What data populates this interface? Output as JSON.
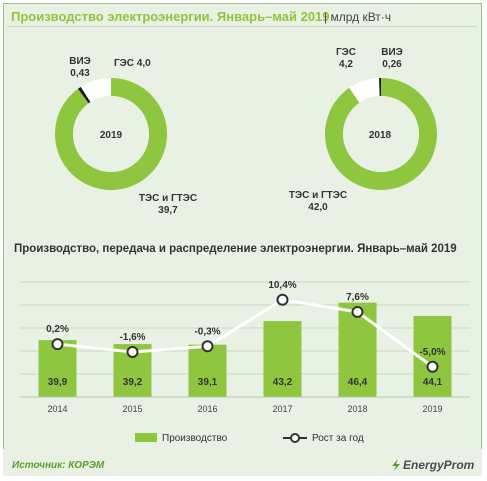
{
  "header": {
    "title": "Производство электроэнергии. Январь–май 2019",
    "unit": "| млрд кВт·ч"
  },
  "colors": {
    "tes": "#8ec63f",
    "ges": "#ffffff",
    "vie": "#1a1a1a",
    "background": "#e8f1e3",
    "line": "#ffffff",
    "title_green": "#8ec63f"
  },
  "donuts": [
    {
      "center_label": "2019",
      "labels": {
        "vie": "ВИЭ\n0,43",
        "ges": "ГЭС 4,0",
        "tes": "ТЭС и ГТЭС\n39,7"
      }
    },
    {
      "center_label": "2018",
      "labels": {
        "ges": "ГЭС\n4,2",
        "vie": "ВИЭ\n0,26",
        "tes": "ТЭС и ГТЭС\n42,0"
      }
    }
  ],
  "chart2": {
    "title": "Производство,  передача и распределение электроэнергии. Январь–май 2019"
  },
  "chart_data": [
    {
      "type": "pie",
      "center": "2019",
      "slices": [
        {
          "name": "ТЭС и ГТЭС",
          "value": 39.7
        },
        {
          "name": "ГЭС",
          "value": 4.0
        },
        {
          "name": "ВИЭ",
          "value": 0.43
        }
      ]
    },
    {
      "type": "pie",
      "center": "2018",
      "slices": [
        {
          "name": "ТЭС и ГТЭС",
          "value": 42.0
        },
        {
          "name": "ГЭС",
          "value": 4.2
        },
        {
          "name": "ВИЭ",
          "value": 0.26
        }
      ]
    },
    {
      "type": "bar",
      "title": "Производство,  передача и распределение электроэнергии. Январь–май 2019",
      "categories": [
        "2014",
        "2015",
        "2016",
        "2017",
        "2018",
        "2019"
      ],
      "series": [
        {
          "name": "Производство",
          "kind": "bar",
          "values": [
            39.9,
            39.2,
            39.1,
            43.2,
            46.4,
            44.1
          ],
          "labels": [
            "39,9",
            "39,2",
            "39,1",
            "43,2",
            "46,4",
            "44,1"
          ]
        },
        {
          "name": "Рост за год",
          "kind": "line",
          "values": [
            0.2,
            -1.6,
            -0.3,
            10.4,
            7.6,
            -5.0
          ],
          "labels": [
            "0,2%",
            "-1,6%",
            "-0,3%",
            "10,4%",
            "7,6%",
            "-5,0%"
          ]
        }
      ],
      "legend": "bottom",
      "grid": true
    }
  ],
  "footer": {
    "source": "Источник: КОРЭМ",
    "brand": "EnergyProm"
  }
}
